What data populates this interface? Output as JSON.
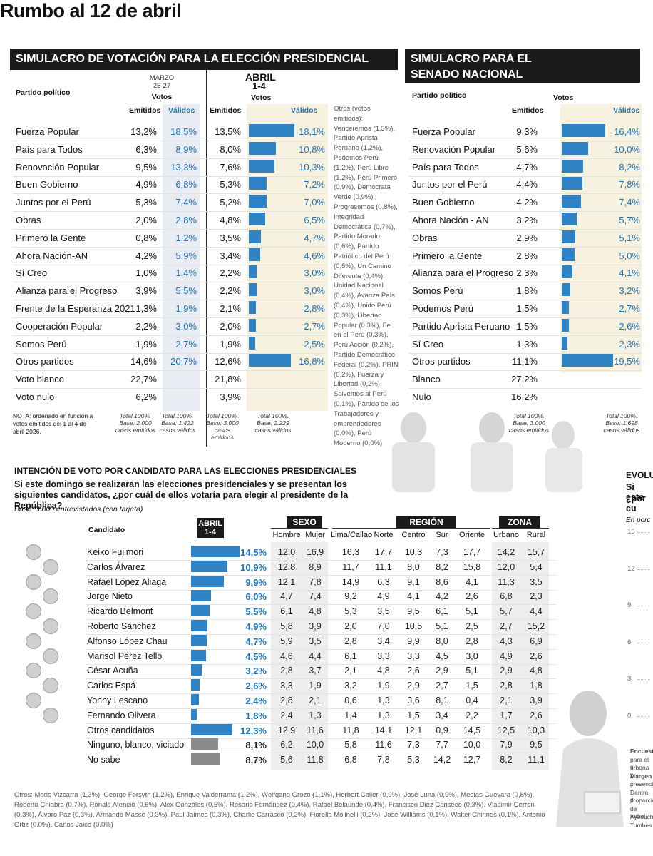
{
  "headline": "Rumbo al 12 de abril",
  "presidential": {
    "title": "SIMULACRO DE VOTACIÓN PARA LA ELECCIÓN PRESIDENCIAL",
    "party_header": "Partido político",
    "marzo_label": "MARZO",
    "marzo_dates": "25-27",
    "abril_label": "ABRIL",
    "abril_dates": "1-4",
    "votos": "Votos",
    "emitidos": "Emitidos",
    "validos": "Válidos",
    "rows": [
      {
        "name": "Fuerza Popular",
        "m_em": "13,2%",
        "m_va": "18,5%",
        "a_em": "13,5%",
        "a_va": "18,1%"
      },
      {
        "name": "País para Todos",
        "m_em": "6,3%",
        "m_va": "8,9%",
        "a_em": "8,0%",
        "a_va": "10,8%"
      },
      {
        "name": "Renovación Popular",
        "m_em": "9,5%",
        "m_va": "13,3%",
        "a_em": "7,6%",
        "a_va": "10,3%"
      },
      {
        "name": "Buen Gobierno",
        "m_em": "4,9%",
        "m_va": "6,8%",
        "a_em": "5,3%",
        "a_va": "7,2%"
      },
      {
        "name": "Juntos por el Perú",
        "m_em": "5,3%",
        "m_va": "7,4%",
        "a_em": "5,2%",
        "a_va": "7,0%"
      },
      {
        "name": "Obras",
        "m_em": "2,0%",
        "m_va": "2,8%",
        "a_em": "4,8%",
        "a_va": "6,5%"
      },
      {
        "name": "Primero la Gente",
        "m_em": "0,8%",
        "m_va": "1,2%",
        "a_em": "3,5%",
        "a_va": "4,7%"
      },
      {
        "name": "Ahora Nación-AN",
        "m_em": "4,2%",
        "m_va": "5,9%",
        "a_em": "3,4%",
        "a_va": "4,6%"
      },
      {
        "name": "Sí Creo",
        "m_em": "1,0%",
        "m_va": "1,4%",
        "a_em": "2,2%",
        "a_va": "3,0%"
      },
      {
        "name": "Alianza para el Progreso",
        "m_em": "3,9%",
        "m_va": "5,5%",
        "a_em": "2,2%",
        "a_va": "3,0%"
      },
      {
        "name": "Frente de la Esperanza 2021",
        "m_em": "1,3%",
        "m_va": "1,9%",
        "a_em": "2,1%",
        "a_va": "2,8%"
      },
      {
        "name": "Cooperación Popular",
        "m_em": "2,2%",
        "m_va": "3,0%",
        "a_em": "2,0%",
        "a_va": "2,7%"
      },
      {
        "name": "Somos Perú",
        "m_em": "1,9%",
        "m_va": "2,7%",
        "a_em": "1,9%",
        "a_va": "2,5%"
      },
      {
        "name": "Otros partidos",
        "m_em": "14,6%",
        "m_va": "20,7%",
        "a_em": "12,6%",
        "a_va": "16,8%"
      },
      {
        "name": "Voto blanco",
        "m_em": "22,7%",
        "m_va": "",
        "a_em": "21,8%",
        "a_va": ""
      },
      {
        "name": "Voto nulo",
        "m_em": "6,2%",
        "m_va": "",
        "a_em": "3,9%",
        "a_va": ""
      }
    ],
    "bar_values": [
      18.1,
      10.8,
      10.3,
      7.2,
      7.0,
      6.5,
      4.7,
      4.6,
      3.0,
      3.0,
      2.8,
      2.7,
      2.5,
      16.8
    ],
    "others_text": "Otros (votos emitidos): Venceremos (1,3%), Partido Aprista Peruano (1,2%), Podemos Perú (1,2%), Perú Libre (1,2%), Perú Primero (0,9%), Demócrata Verde (0,9%), Progresemos (0,8%), Integridad Democrática (0,7%), Partido Morado (0,6%), Partido Patriótico del Perú (0,5%), Un Camino Diferente (0,4%), Unidad Nacional (0,4%), Avanza País (0,4%), Unido Perú (0,3%), Libertad Popular (0,3%), Fe en el Perú (0,3%), Perú Acción (0,2%), Partido Democrático Federal (0,2%), PRIN (0,2%), Fuerza y Libertad (0,2%), Salvemos al Perú (0,1%), Partido de los Trabajadores y emprendedores (0,0%), Perú Moderno (0,0%)",
    "nota": "NOTA: ordenado en función a votos emitidos del 1 al 4 de abril 2026.",
    "base1": "Total 100%. Base: 2.000 casos emitidos",
    "base2": "Total 100%. Base: 1.422 casos válidos",
    "base3": "Total 100%. Base: 3.000 casos emitidos",
    "base4": "Total 100%. Base: 2.229 casos válidos"
  },
  "senate": {
    "title1": "SIMULACRO PARA EL",
    "title2": "SENADO NACIONAL",
    "party_header": "Partido político",
    "votos": "Votos",
    "emitidos": "Emitidos",
    "validos": "Válidos",
    "rows": [
      {
        "name": "Fuerza Popular",
        "em": "9,3%",
        "va": "16,4%"
      },
      {
        "name": "Renovación Popular",
        "em": "5,6%",
        "va": "10,0%"
      },
      {
        "name": "País para Todos",
        "em": "4,7%",
        "va": "8,2%"
      },
      {
        "name": "Juntos por el Perú",
        "em": "4,4%",
        "va": "7,8%"
      },
      {
        "name": "Buen Gobierno",
        "em": "4,2%",
        "va": "7,4%"
      },
      {
        "name": "Ahora Nación - AN",
        "em": "3,2%",
        "va": "5,7%"
      },
      {
        "name": "Obras",
        "em": "2,9%",
        "va": "5,1%"
      },
      {
        "name": "Primero la Gente",
        "em": "2,8%",
        "va": "5,0%"
      },
      {
        "name": "Alianza para el Progreso",
        "em": "2,3%",
        "va": "4,1%"
      },
      {
        "name": "Somos Perú",
        "em": "1,8%",
        "va": "3,2%"
      },
      {
        "name": "Podemos Perú",
        "em": "1,5%",
        "va": "2,7%"
      },
      {
        "name": "Partido Aprista Peruano",
        "em": "1,5%",
        "va": "2,6%"
      },
      {
        "name": "Sí Creo",
        "em": "1,3%",
        "va": "2,3%"
      },
      {
        "name": "Otros partidos",
        "em": "11,1%",
        "va": "19,5%"
      },
      {
        "name": "Blanco",
        "em": "27,2%",
        "va": ""
      },
      {
        "name": "Nulo",
        "em": "16,2%",
        "va": ""
      }
    ],
    "bar_values": [
      16.4,
      10.0,
      8.2,
      7.8,
      7.4,
      5.7,
      5.1,
      5.0,
      4.1,
      3.2,
      2.7,
      2.6,
      2.3,
      19.5
    ],
    "base1": "Total 100%. Base: 3.000 casos emitidos",
    "base2": "Total 100%. Base: 1.698 casos válidos"
  },
  "candidates": {
    "title": "INTENCIÓN DE VOTO POR CANDIDATO PARA LAS ELECCIONES PRESIDENCIALES",
    "question": "Si este domingo se realizaran las elecciones presidenciales y se presentan los siguientes candidatos, ¿por cuál de ellos votaría para elegir al presidente de la República?",
    "base": "Base: 3.000 entrevistados (con tarjeta)",
    "col_candidato": "Candidato",
    "abril_label": "ABRIL",
    "abril_dates": "1-4",
    "sexo": "SEXO",
    "region": "REGIÓN",
    "zona": "ZONA",
    "sub_headers": [
      "Hombre",
      "Mujer",
      "Lima/Callao",
      "Norte",
      "Centro",
      "Sur",
      "Oriente",
      "Urbano",
      "Rural"
    ],
    "rows": [
      {
        "name": "Keiko Fujimori",
        "total": "14,5%",
        "v": [
          "12,0",
          "16,9",
          "16,3",
          "17,7",
          "10,3",
          "7,3",
          "17,7",
          "14,2",
          "15,7"
        ]
      },
      {
        "name": "Carlos Álvarez",
        "total": "10,9%",
        "v": [
          "12,8",
          "8,9",
          "11,7",
          "11,1",
          "8,0",
          "8,2",
          "15,8",
          "12,0",
          "5,4"
        ]
      },
      {
        "name": "Rafael López Aliaga",
        "total": "9,9%",
        "v": [
          "12,1",
          "7,8",
          "14,9",
          "6,3",
          "9,1",
          "8,6",
          "4,1",
          "11,3",
          "3,5"
        ]
      },
      {
        "name": "Jorge Nieto",
        "total": "6,0%",
        "v": [
          "4,7",
          "7,4",
          "9,2",
          "4,9",
          "4,1",
          "4,2",
          "2,6",
          "6,8",
          "2,3"
        ]
      },
      {
        "name": "Ricardo Belmont",
        "total": "5,5%",
        "v": [
          "6,1",
          "4,8",
          "5,3",
          "3,5",
          "9,5",
          "6,1",
          "5,1",
          "5,7",
          "4,4"
        ]
      },
      {
        "name": "Roberto Sánchez",
        "total": "4,9%",
        "v": [
          "5,8",
          "3,9",
          "2,0",
          "7,0",
          "10,5",
          "5,1",
          "2,5",
          "2,7",
          "15,2"
        ]
      },
      {
        "name": "Alfonso López Chau",
        "total": "4,7%",
        "v": [
          "5,9",
          "3,5",
          "2,8",
          "3,4",
          "9,9",
          "8,0",
          "2,8",
          "4,3",
          "6,9"
        ]
      },
      {
        "name": "Marisol Pérez Tello",
        "total": "4,5%",
        "v": [
          "4,6",
          "4,4",
          "6,1",
          "3,3",
          "3,3",
          "4,5",
          "3,0",
          "4,9",
          "2,6"
        ]
      },
      {
        "name": "César Acuña",
        "total": "3,2%",
        "v": [
          "2,8",
          "3,7",
          "2,1",
          "4,8",
          "2,6",
          "2,9",
          "5,1",
          "2,9",
          "4,8"
        ]
      },
      {
        "name": "Carlos Espá",
        "total": "2,6%",
        "v": [
          "3,3",
          "1,9",
          "3,2",
          "1,9",
          "2,9",
          "2,7",
          "1,5",
          "2,8",
          "1,8"
        ]
      },
      {
        "name": "Yonhy Lescano",
        "total": "2,4%",
        "v": [
          "2,8",
          "2,1",
          "0,6",
          "1,3",
          "3,6",
          "8,1",
          "0,4",
          "2,1",
          "3,9"
        ]
      },
      {
        "name": "Fernando Olivera",
        "total": "1,8%",
        "v": [
          "2,4",
          "1,3",
          "1,4",
          "1,3",
          "1,5",
          "3,4",
          "2,2",
          "1,7",
          "2,6"
        ]
      },
      {
        "name": "Otros candidatos",
        "total": "12,3%",
        "v": [
          "12,9",
          "11,6",
          "11,8",
          "14,1",
          "12,1",
          "0,9",
          "14,5",
          "12,5",
          "10,3"
        ]
      },
      {
        "name": "Ninguno, blanco, viciado",
        "total": "8,1%",
        "v": [
          "6,2",
          "10,0",
          "5,8",
          "11,6",
          "7,3",
          "7,7",
          "10,0",
          "7,9",
          "9,5"
        ]
      },
      {
        "name": "No sabe",
        "total": "8,7%",
        "v": [
          "5,6",
          "11,8",
          "6,8",
          "7,8",
          "5,3",
          "14,2",
          "12,7",
          "8,2",
          "11,1"
        ]
      }
    ],
    "bar_values": [
      14.5,
      10.9,
      9.9,
      6.0,
      5.5,
      4.9,
      4.7,
      4.5,
      3.2,
      2.6,
      2.4,
      1.8,
      12.3,
      8.1,
      8.7
    ],
    "others_text": "Otros: Mario Vizcarra (1,3%), George Forsyth (1,2%), Enrique Valderrama (1,2%), Wolfgang Grozo (1,1%), Herbert Caller (0,9%), José Luna (0,9%), Mesías Guevara (0,8%), Roberto Chiabra (0,7%), Ronald Atencio (0,6%), Alex Gonzáles (0,5%), Rosario Fernández (0,4%), Rafael Belaúnde (0,4%), Francisco Diez Canseco (0,3%), Vladimir Cerron (0.3%), Álvaro Páz (0,3%), Armando Massé (0,3%), Paul Jaimes (0,3%), Charlie Carrasco (0,2%), Fiorella Molinelli (0,2%), José Williams (0,1%), Walter Chirinos (0,1%), Antonio Ortiz (0,0%), Carlos Jaico (0,0%)"
  },
  "evolution": {
    "title": "EVOLU",
    "sub1": "Si este",
    "sub2": "¿por cu",
    "unit": "En porc",
    "ticks": [
      "15",
      "12",
      "9",
      "6",
      "3",
      "0"
    ],
    "fragments": [
      "Encuest",
      "para el s",
      "urbana y",
      "Margen",
      "presenci",
      "Dentro d",
      "proporcio",
      "de trabaj",
      "Ayacuch",
      "Tumbes"
    ]
  },
  "chart_data": [
    {
      "type": "bar",
      "title": "SIMULACRO DE VOTACIÓN PARA LA ELECCIÓN PRESIDENCIAL",
      "categories": [
        "Fuerza Popular",
        "País para Todos",
        "Renovación Popular",
        "Buen Gobierno",
        "Juntos por el Perú",
        "Obras",
        "Primero la Gente",
        "Ahora Nación-AN",
        "Sí Creo",
        "Alianza para el Progreso",
        "Frente de la Esperanza 2021",
        "Cooperación Popular",
        "Somos Perú",
        "Otros partidos"
      ],
      "series": [
        {
          "name": "Válidos",
          "values": [
            18.1,
            10.8,
            10.3,
            7.2,
            7.0,
            6.5,
            4.7,
            4.6,
            3.0,
            3.0,
            2.8,
            2.7,
            2.5,
            16.8
          ]
        },
        {
          "name": "Emitidos",
          "values": [
            13.5,
            8.0,
            7.6,
            5.3,
            5.2,
            4.8,
            3.5,
            3.4,
            2.2,
            2.2,
            2.1,
            2.0,
            1.9,
            12.6
          ]
        }
      ]
    },
    {
      "type": "bar",
      "title": "SIMULACRO PARA EL SENADO NACIONAL",
      "categories": [
        "Fuerza Popular",
        "Renovación Popular",
        "País para Todos",
        "Juntos por el Perú",
        "Buen Gobierno",
        "Ahora Nación - AN",
        "Obras",
        "Primero la Gente",
        "Alianza para el Progreso",
        "Somos Perú",
        "Podemos Perú",
        "Partido Aprista Peruano",
        "Sí Creo",
        "Otros partidos"
      ],
      "series": [
        {
          "name": "Válidos",
          "values": [
            16.4,
            10.0,
            8.2,
            7.8,
            7.4,
            5.7,
            5.1,
            5.0,
            4.1,
            3.2,
            2.7,
            2.6,
            2.3,
            19.5
          ]
        },
        {
          "name": "Emitidos",
          "values": [
            9.3,
            5.6,
            4.7,
            4.4,
            4.2,
            3.2,
            2.9,
            2.8,
            2.3,
            1.8,
            1.5,
            1.5,
            1.3,
            11.1
          ]
        }
      ]
    },
    {
      "type": "bar",
      "title": "INTENCIÓN DE VOTO POR CANDIDATO PARA LAS ELECCIONES PRESIDENCIALES",
      "categories": [
        "Keiko Fujimori",
        "Carlos Álvarez",
        "Rafael López Aliaga",
        "Jorge Nieto",
        "Ricardo Belmont",
        "Roberto Sánchez",
        "Alfonso López Chau",
        "Marisol Pérez Tello",
        "César Acuña",
        "Carlos Espá",
        "Yonhy Lescano",
        "Fernando Olivera",
        "Otros candidatos",
        "Ninguno, blanco, viciado",
        "No sabe"
      ],
      "values": [
        14.5,
        10.9,
        9.9,
        6.0,
        5.5,
        4.9,
        4.7,
        4.5,
        3.2,
        2.6,
        2.4,
        1.8,
        12.3,
        8.1,
        8.7
      ]
    }
  ]
}
